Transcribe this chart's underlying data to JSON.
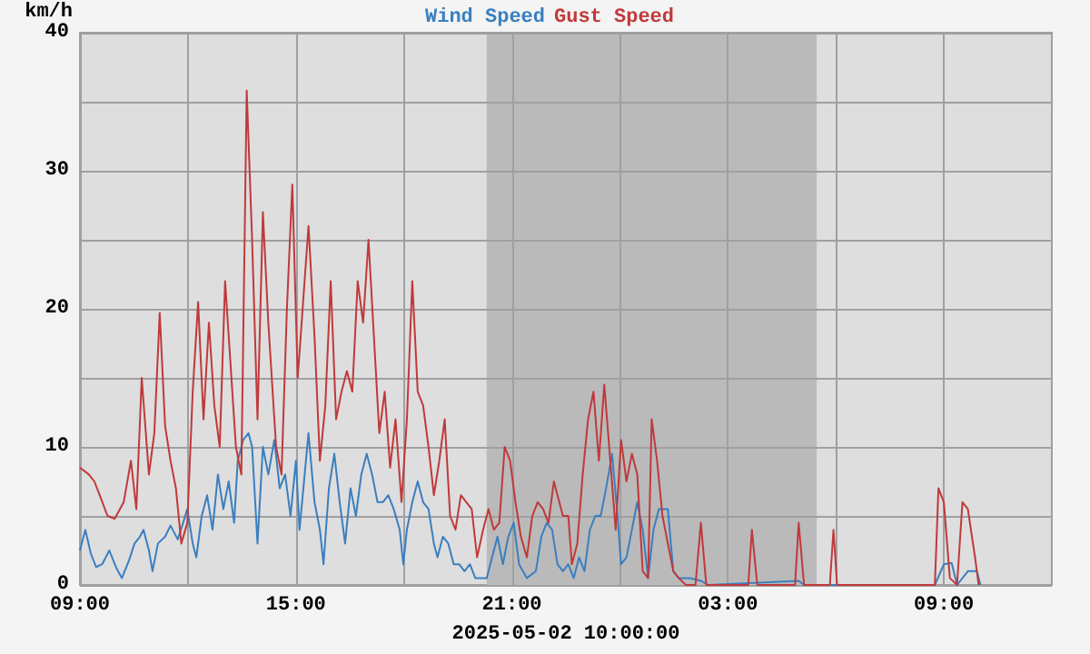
{
  "chart_data": {
    "type": "line",
    "ylabel": "km/h",
    "xlabel": "2025-05-02 10:00:00",
    "xlim": [
      "2025-05-02T09:00",
      "2025-05-03T12:00"
    ],
    "xticks": [
      {
        "value": "2025-05-02T09:00",
        "label": "09:00"
      },
      {
        "value": "2025-05-02T12:00",
        "label": null
      },
      {
        "value": "2025-05-02T15:00",
        "label": "15:00"
      },
      {
        "value": "2025-05-02T18:00",
        "label": null
      },
      {
        "value": "2025-05-02T21:00",
        "label": "21:00"
      },
      {
        "value": "2025-05-03T00:00",
        "label": null
      },
      {
        "value": "2025-05-03T03:00",
        "label": "03:00"
      },
      {
        "value": "2025-05-03T06:00",
        "label": null
      },
      {
        "value": "2025-05-03T09:00",
        "label": "09:00"
      }
    ],
    "ylim": [
      0,
      40
    ],
    "yticks": [
      0,
      {
        "value": 5,
        "label": null
      },
      10,
      {
        "value": 15,
        "label": null
      },
      20,
      {
        "value": 25,
        "label": null
      },
      30,
      {
        "value": 35,
        "label": null
      },
      40
    ],
    "grid": true,
    "legend": "top",
    "marker": "none",
    "bands": [
      {
        "axis": "x",
        "from": "2025-05-02T20:18",
        "to": "2025-05-03T05:28",
        "color": "#bababa"
      }
    ],
    "series": [
      {
        "name": "Wind Speed",
        "color": "#3a7fc0",
        "x": [
          "2025-05-02T09:00",
          "2025-05-02T09:09",
          "2025-05-02T09:18",
          "2025-05-02T09:27",
          "2025-05-02T09:37",
          "2025-05-02T09:49",
          "2025-05-02T10:01",
          "2025-05-02T10:10",
          "2025-05-02T10:22",
          "2025-05-02T10:31",
          "2025-05-02T10:40",
          "2025-05-02T10:46",
          "2025-05-02T10:55",
          "2025-05-02T11:01",
          "2025-05-02T11:10",
          "2025-05-02T11:22",
          "2025-05-02T11:31",
          "2025-05-02T11:43",
          "2025-05-02T11:52",
          "2025-05-02T11:59",
          "2025-05-02T12:08",
          "2025-05-02T12:14",
          "2025-05-02T12:23",
          "2025-05-02T12:32",
          "2025-05-02T12:41",
          "2025-05-02T12:50",
          "2025-05-02T12:59",
          "2025-05-02T13:08",
          "2025-05-02T13:17",
          "2025-05-02T13:23",
          "2025-05-02T13:32",
          "2025-05-02T13:41",
          "2025-05-02T13:47",
          "2025-05-02T13:56",
          "2025-05-02T14:05",
          "2025-05-02T14:14",
          "2025-05-02T14:24",
          "2025-05-02T14:33",
          "2025-05-02T14:42",
          "2025-05-02T14:51",
          "2025-05-02T15:00",
          "2025-05-02T15:06",
          "2025-05-02T15:21",
          "2025-05-02T15:31",
          "2025-05-02T15:40",
          "2025-05-02T15:46",
          "2025-05-02T15:55",
          "2025-05-02T16:04",
          "2025-05-02T16:13",
          "2025-05-02T16:22",
          "2025-05-02T16:31",
          "2025-05-02T16:40",
          "2025-05-02T16:49",
          "2025-05-02T16:58",
          "2025-05-02T17:07",
          "2025-05-02T17:16",
          "2025-05-02T17:25",
          "2025-05-02T17:34",
          "2025-05-02T17:43",
          "2025-05-02T17:53",
          "2025-05-02T17:59",
          "2025-05-02T18:05",
          "2025-05-02T18:14",
          "2025-05-02T18:23",
          "2025-05-02T18:32",
          "2025-05-02T18:41",
          "2025-05-02T18:50",
          "2025-05-02T18:56",
          "2025-05-02T19:05",
          "2025-05-02T19:14",
          "2025-05-02T19:23",
          "2025-05-02T19:32",
          "2025-05-02T19:41",
          "2025-05-02T19:50",
          "2025-05-02T19:59",
          "2025-05-02T20:09",
          "2025-05-02T20:18",
          "2025-05-02T20:27",
          "2025-05-02T20:36",
          "2025-05-02T20:45",
          "2025-05-02T20:54",
          "2025-05-02T21:03",
          "2025-05-02T21:12",
          "2025-05-02T21:25",
          "2025-05-02T21:40",
          "2025-05-02T21:49",
          "2025-05-02T21:58",
          "2025-05-02T22:07",
          "2025-05-02T22:16",
          "2025-05-02T22:25",
          "2025-05-02T22:34",
          "2025-05-02T22:43",
          "2025-05-02T22:52",
          "2025-05-02T23:01",
          "2025-05-02T23:10",
          "2025-05-02T23:19",
          "2025-05-02T23:28",
          "2025-05-02T23:37",
          "2025-05-02T23:47",
          "2025-05-02T23:56",
          "2025-05-03T00:02",
          "2025-05-03T00:11",
          "2025-05-03T00:20",
          "2025-05-03T00:29",
          "2025-05-03T00:38",
          "2025-05-03T00:47",
          "2025-05-03T00:56",
          "2025-05-03T01:05",
          "2025-05-03T01:20",
          "2025-05-03T01:29",
          "2025-05-03T01:38",
          "2025-05-03T01:56",
          "2025-05-03T02:15",
          "2025-05-03T02:27",
          "2025-05-03T04:58",
          "2025-05-03T05:07",
          "2025-05-03T08:45",
          "2025-05-03T09:00",
          "2025-05-03T09:13",
          "2025-05-03T09:22",
          "2025-05-03T09:40",
          "2025-05-03T09:55",
          "2025-05-03T10:01"
        ],
        "values": [
          2.5,
          4,
          2.3,
          1.3,
          1.5,
          2.5,
          1.2,
          0.5,
          1.8,
          3,
          3.5,
          4,
          2.5,
          1,
          3,
          3.5,
          4.3,
          3.3,
          4.5,
          5.5,
          3,
          2,
          5,
          6.5,
          4,
          8,
          5.5,
          7.5,
          4.5,
          9,
          10.5,
          11,
          10,
          3,
          10,
          8,
          10.5,
          7,
          8,
          5,
          9,
          4,
          11,
          6,
          4,
          1.5,
          7,
          9.5,
          6,
          3,
          7,
          5,
          8,
          9.5,
          8,
          6,
          6,
          6.5,
          5.5,
          4,
          1.5,
          4,
          6,
          7.5,
          6,
          5.5,
          3,
          2,
          3.5,
          3,
          1.5,
          1.5,
          1,
          1.5,
          0.5,
          0.5,
          0.5,
          2,
          3.5,
          1.5,
          3.5,
          4.5,
          1.5,
          0.5,
          1,
          3.5,
          4.5,
          4,
          1.5,
          1,
          1.5,
          0.5,
          2,
          1,
          4,
          5,
          5,
          7,
          9.5,
          5,
          1.5,
          2,
          4,
          6,
          4,
          0.5,
          4,
          5.5,
          5.5,
          1,
          0.5,
          0.5,
          0.3,
          0,
          0.3,
          0,
          0,
          1.5,
          1.6,
          0,
          1,
          1,
          0
        ]
      },
      {
        "name": "Gust Speed",
        "color": "#c0393b",
        "x": [
          "2025-05-02T09:00",
          "2025-05-02T09:15",
          "2025-05-02T09:24",
          "2025-05-02T09:33",
          "2025-05-02T09:46",
          "2025-05-02T09:58",
          "2025-05-02T10:13",
          "2025-05-02T10:25",
          "2025-05-02T10:34",
          "2025-05-02T10:43",
          "2025-05-02T10:55",
          "2025-05-02T11:04",
          "2025-05-02T11:13",
          "2025-05-02T11:22",
          "2025-05-02T11:31",
          "2025-05-02T11:40",
          "2025-05-02T11:49",
          "2025-05-02T11:59",
          "2025-05-02T12:08",
          "2025-05-02T12:17",
          "2025-05-02T12:26",
          "2025-05-02T12:35",
          "2025-05-02T12:44",
          "2025-05-02T12:53",
          "2025-05-02T13:02",
          "2025-05-02T13:11",
          "2025-05-02T13:20",
          "2025-05-02T13:29",
          "2025-05-02T13:38",
          "2025-05-02T13:47",
          "2025-05-02T13:56",
          "2025-05-02T14:05",
          "2025-05-02T14:14",
          "2025-05-02T14:27",
          "2025-05-02T14:36",
          "2025-05-02T14:45",
          "2025-05-02T14:54",
          "2025-05-02T15:03",
          "2025-05-02T15:21",
          "2025-05-02T15:31",
          "2025-05-02T15:40",
          "2025-05-02T15:49",
          "2025-05-02T15:58",
          "2025-05-02T16:07",
          "2025-05-02T16:16",
          "2025-05-02T16:25",
          "2025-05-02T16:34",
          "2025-05-02T16:43",
          "2025-05-02T16:52",
          "2025-05-02T17:01",
          "2025-05-02T17:10",
          "2025-05-02T17:19",
          "2025-05-02T17:28",
          "2025-05-02T17:37",
          "2025-05-02T17:46",
          "2025-05-02T17:56",
          "2025-05-02T18:05",
          "2025-05-02T18:14",
          "2025-05-02T18:23",
          "2025-05-02T18:32",
          "2025-05-02T18:41",
          "2025-05-02T18:50",
          "2025-05-02T18:59",
          "2025-05-02T19:08",
          "2025-05-02T19:17",
          "2025-05-02T19:26",
          "2025-05-02T19:35",
          "2025-05-02T19:44",
          "2025-05-02T19:53",
          "2025-05-02T20:02",
          "2025-05-02T20:12",
          "2025-05-02T20:21",
          "2025-05-02T20:30",
          "2025-05-02T20:39",
          "2025-05-02T20:48",
          "2025-05-02T20:57",
          "2025-05-02T21:06",
          "2025-05-02T21:15",
          "2025-05-02T21:25",
          "2025-05-02T21:34",
          "2025-05-02T21:43",
          "2025-05-02T21:52",
          "2025-05-02T22:01",
          "2025-05-02T22:10",
          "2025-05-02T22:25",
          "2025-05-02T22:34",
          "2025-05-02T22:40",
          "2025-05-02T22:49",
          "2025-05-02T22:58",
          "2025-05-02T23:07",
          "2025-05-02T23:16",
          "2025-05-02T23:25",
          "2025-05-02T23:34",
          "2025-05-02T23:44",
          "2025-05-02T23:53",
          "2025-05-03T00:02",
          "2025-05-03T00:11",
          "2025-05-03T00:20",
          "2025-05-03T00:29",
          "2025-05-03T00:38",
          "2025-05-03T00:47",
          "2025-05-03T00:53",
          "2025-05-03T01:02",
          "2025-05-03T01:11",
          "2025-05-03T01:20",
          "2025-05-03T01:29",
          "2025-05-03T01:38",
          "2025-05-03T01:50",
          "2025-05-03T02:06",
          "2025-05-03T02:15",
          "2025-05-03T02:24",
          "2025-05-03T03:34",
          "2025-05-03T03:40",
          "2025-05-03T03:49",
          "2025-05-03T04:52",
          "2025-05-03T04:58",
          "2025-05-03T05:07",
          "2025-05-03T05:50",
          "2025-05-03T05:56",
          "2025-05-03T06:02",
          "2025-05-03T08:45",
          "2025-05-03T08:51",
          "2025-05-03T09:00",
          "2025-05-03T09:10",
          "2025-05-03T09:22",
          "2025-05-03T09:31",
          "2025-05-03T09:40",
          "2025-05-03T09:52",
          "2025-05-03T09:58"
        ],
        "values": [
          8.5,
          8,
          7.5,
          6.5,
          5,
          4.8,
          6,
          9,
          5.5,
          15,
          8,
          11,
          19.7,
          11.5,
          9,
          7,
          3,
          4.5,
          14,
          20.5,
          12,
          19,
          13,
          10,
          22,
          16,
          10,
          8,
          35.8,
          25,
          12,
          27,
          19,
          10,
          8,
          20,
          29,
          15,
          26,
          18,
          9,
          13,
          22,
          12,
          14,
          15.5,
          14,
          22,
          19,
          25,
          18,
          11,
          14,
          8.5,
          12,
          6,
          12,
          22,
          14,
          13,
          10,
          6.5,
          9,
          12,
          5,
          4,
          6.5,
          6,
          5.5,
          2,
          4,
          5.5,
          4,
          4.5,
          10,
          9,
          6,
          3.5,
          2,
          5,
          6,
          5.5,
          4.5,
          7.5,
          5,
          5,
          1.5,
          3,
          8,
          12,
          14,
          9,
          14.5,
          9,
          4,
          10.5,
          7.5,
          9.5,
          8,
          1,
          0.5,
          12,
          9,
          5,
          3,
          1,
          0.5,
          0,
          0,
          4.5,
          0,
          0,
          4,
          0,
          0,
          4.5,
          0,
          0,
          4,
          0,
          0,
          7,
          6,
          0.5,
          0,
          6,
          5.5,
          2,
          0
        ]
      }
    ]
  }
}
